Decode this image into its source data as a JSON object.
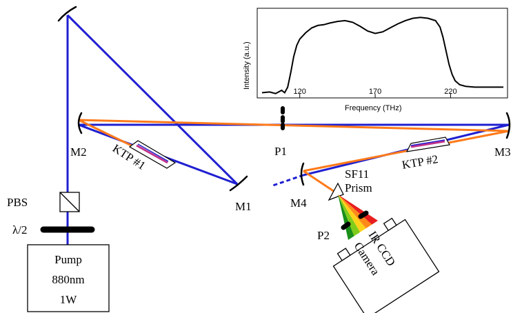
{
  "labels": {
    "pbs": "PBS",
    "half_wave": "λ/2",
    "pump_line1": "Pump",
    "pump_line2": "880nm",
    "pump_line3": "1W",
    "m1": "M1",
    "m2": "M2",
    "m3": "M3",
    "m4": "M4",
    "p1": "P1",
    "p2": "P2",
    "ktp1": "KTP #1",
    "ktp2": "KTP #2",
    "prism_line1": "SF11",
    "prism_line2": "Prism",
    "camera_line1": "IR CCD",
    "camera_line2": "Camera"
  },
  "colors": {
    "pump_beam": "#1f1fd1",
    "signal_beam": "#ff7a1a",
    "crystal_inner": "#c0338c",
    "spectrum": [
      "#1a8f1a",
      "#7fcc1a",
      "#ffd21a",
      "#ff8a1a",
      "#e81e1e"
    ]
  },
  "inset": {
    "xlabel": "Frequency  (THz)",
    "ylabel": "Intensity (a.u.)",
    "xticks": [
      "120",
      "170",
      "220"
    ]
  },
  "chart_data": {
    "type": "line",
    "xlabel": "Frequency  (THz)",
    "ylabel": "Intensity (a.u.)",
    "xlim": [
      95,
      255
    ],
    "ylim": [
      0,
      1.05
    ],
    "xticks": [
      120,
      170,
      220
    ],
    "series": [
      {
        "x": [
          95,
          100,
          104,
          108,
          110,
          112,
          114,
          116,
          118,
          120,
          124,
          128,
          132,
          136,
          140,
          145,
          150,
          155,
          160,
          165,
          170,
          175,
          180,
          185,
          190,
          195,
          200,
          205,
          210,
          213,
          215,
          217,
          219,
          221,
          223,
          226,
          230,
          236,
          242,
          250,
          255
        ],
        "y": [
          0.03,
          0.04,
          0.02,
          0.06,
          0.03,
          0.1,
          0.28,
          0.48,
          0.62,
          0.7,
          0.78,
          0.84,
          0.87,
          0.88,
          0.9,
          0.92,
          0.93,
          0.91,
          0.86,
          0.8,
          0.77,
          0.79,
          0.84,
          0.89,
          0.93,
          0.96,
          0.97,
          0.96,
          0.93,
          0.85,
          0.72,
          0.55,
          0.38,
          0.26,
          0.18,
          0.13,
          0.11,
          0.1,
          0.1,
          0.1,
          0.1
        ]
      }
    ]
  }
}
